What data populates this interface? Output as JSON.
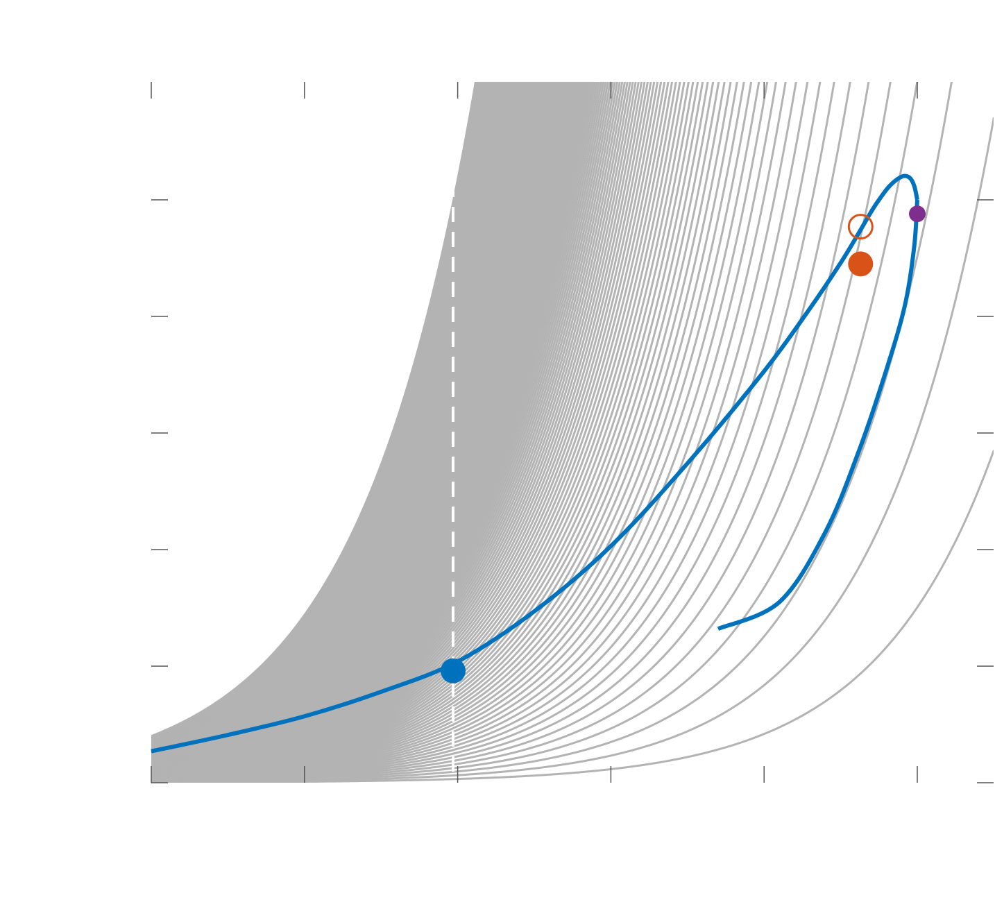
{
  "chart_data": {
    "type": "line",
    "title": "",
    "xlabel": "",
    "ylabel": "",
    "xlim": [
      0,
      5.5
    ],
    "ylim": [
      0,
      6
    ],
    "xticks": [
      0,
      1,
      2,
      3,
      4,
      5
    ],
    "yticks": [
      0,
      1,
      2,
      3,
      4,
      5
    ],
    "grid": false,
    "legend": "none",
    "background_curves": {
      "description_free": true,
      "family_k_start": 0.0025,
      "family_k_step": 0.0025,
      "family_count": 160,
      "color": "#b3b3b3"
    },
    "series": [
      {
        "key": "upper-branch",
        "color": "#0072bd",
        "x": [
          0,
          0.5,
          1.0,
          1.5,
          2.0,
          2.5,
          3.0,
          3.5,
          4.0,
          4.3,
          4.5,
          4.62,
          4.7,
          4.75,
          4.82,
          4.9,
          4.95,
          4.98,
          5.0
        ],
        "y": [
          0.27,
          0.41,
          0.57,
          0.78,
          1.04,
          1.47,
          2.03,
          2.74,
          3.53,
          4.07,
          4.46,
          4.72,
          4.9,
          5.0,
          5.12,
          5.2,
          5.19,
          5.12,
          5.0
        ]
      },
      {
        "key": "lower-branch",
        "color": "#0072bd",
        "x": [
          5.0,
          4.98,
          4.92,
          4.8,
          4.62,
          4.4,
          4.1,
          3.7
        ],
        "y": [
          5.0,
          4.6,
          4.1,
          3.55,
          2.85,
          2.15,
          1.55,
          1.32
        ]
      }
    ],
    "markers": [
      {
        "key": "blue-dot",
        "x": 1.97,
        "y": 0.96,
        "color": "#0072bd",
        "filled": true,
        "r": 18
      },
      {
        "key": "orange-dot",
        "x": 4.63,
        "y": 4.45,
        "color": "#d95319",
        "filled": true,
        "r": 18
      },
      {
        "key": "orange-ring",
        "x": 4.63,
        "y": 4.77,
        "color": "#d95319",
        "filled": false,
        "r": 17
      },
      {
        "key": "purple-dot",
        "x": 5.0,
        "y": 4.88,
        "color": "#7e2f8e",
        "filled": true,
        "r": 12
      }
    ],
    "vertical_lines": [
      {
        "key": "dashed-line",
        "x": 1.97,
        "color": "#ffffff",
        "style": "dashed"
      }
    ]
  }
}
